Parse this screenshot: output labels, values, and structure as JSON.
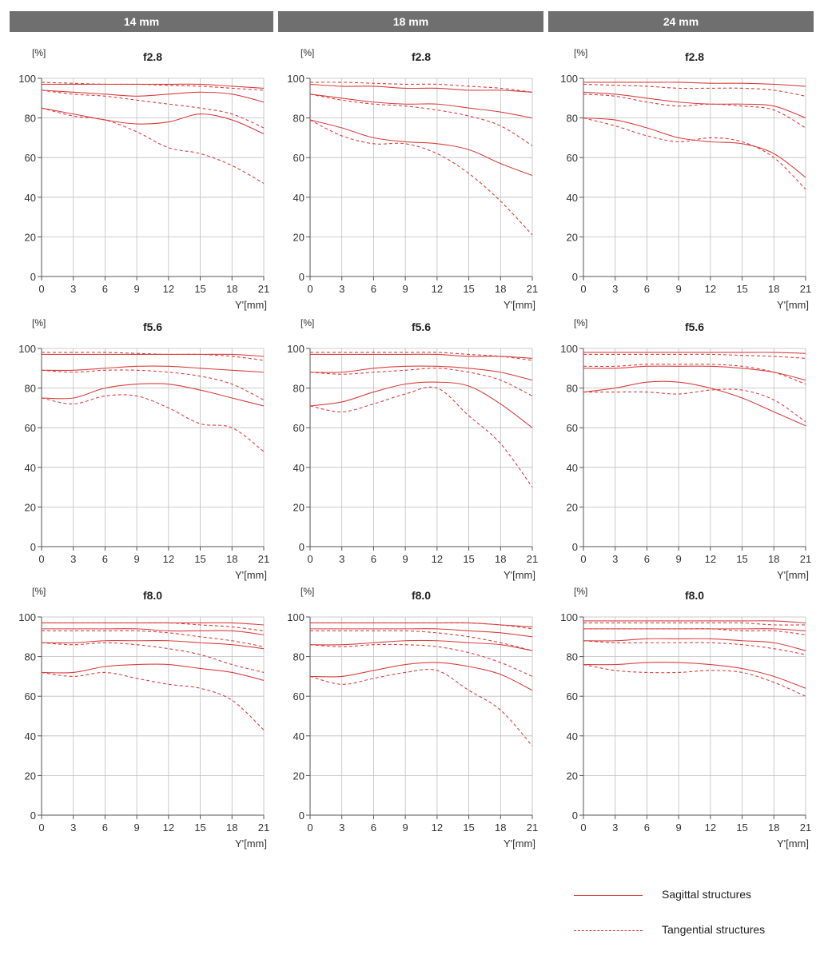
{
  "colors": {
    "curve": "#d94040",
    "grid": "#bdbdbd",
    "axis": "#555555",
    "header_bg": "#6f6f6f"
  },
  "chart_data": {
    "type": "line",
    "columns": [
      "14 mm",
      "18 mm",
      "24 mm"
    ],
    "y_unit_label": "[%]",
    "x_axis_label": "Y'[mm]",
    "x_ticks": [
      0,
      3,
      6,
      9,
      12,
      15,
      18,
      21
    ],
    "y_ticks": [
      0,
      20,
      40,
      60,
      80,
      100
    ],
    "xlim": [
      0,
      21
    ],
    "ylim": [
      0,
      100
    ],
    "grid": true,
    "legend": {
      "placement": "bottom-right",
      "entries": [
        {
          "name": "Sagittal structures",
          "style": "solid"
        },
        {
          "name": "Tangential structures",
          "style": "dashed"
        }
      ]
    },
    "x": [
      0,
      3,
      6,
      9,
      12,
      15,
      18,
      21
    ],
    "panels": [
      {
        "column": "14 mm",
        "aperture": "f2.8",
        "series": [
          {
            "style": "solid",
            "values": [
              97,
              97,
              97,
              97,
              97,
              97,
              96,
              95
            ]
          },
          {
            "style": "dashed",
            "values": [
              98,
              97.5,
              97,
              97,
              96.5,
              96,
              95,
              94
            ]
          },
          {
            "style": "solid",
            "values": [
              94,
              93,
              92,
              91,
              92,
              93,
              92,
              88
            ]
          },
          {
            "style": "dashed",
            "values": [
              94,
              92,
              91,
              89,
              87,
              85,
              82,
              75
            ]
          },
          {
            "style": "solid",
            "values": [
              85,
              82,
              79,
              77,
              78,
              82,
              79,
              72
            ]
          },
          {
            "style": "dashed",
            "values": [
              85,
              81,
              79,
              73,
              65,
              62,
              56,
              47
            ]
          }
        ]
      },
      {
        "column": "18 mm",
        "aperture": "f2.8",
        "series": [
          {
            "style": "solid",
            "values": [
              97,
              96,
              96,
              95,
              95,
              94,
              94,
              93
            ]
          },
          {
            "style": "dashed",
            "values": [
              98,
              98,
              97.5,
              97,
              97,
              96,
              95,
              93
            ]
          },
          {
            "style": "solid",
            "values": [
              92,
              90,
              88,
              87,
              87,
              85,
              83,
              80
            ]
          },
          {
            "style": "dashed",
            "values": [
              92,
              89,
              87,
              86,
              84,
              81,
              76,
              66
            ]
          },
          {
            "style": "solid",
            "values": [
              79,
              75,
              70,
              68,
              67,
              64,
              57,
              51
            ]
          },
          {
            "style": "dashed",
            "values": [
              79,
              71,
              67,
              67,
              62,
              52,
              38,
              21
            ]
          }
        ]
      },
      {
        "column": "24 mm",
        "aperture": "f2.8",
        "series": [
          {
            "style": "solid",
            "values": [
              98,
              98,
              98,
              98,
              97.5,
              97.5,
              97,
              96
            ]
          },
          {
            "style": "dashed",
            "values": [
              97,
              96.5,
              96,
              95,
              95,
              95,
              94,
              91
            ]
          },
          {
            "style": "solid",
            "values": [
              93,
              92,
              90,
              88,
              87,
              87,
              86,
              80
            ]
          },
          {
            "style": "dashed",
            "values": [
              92,
              91,
              88,
              86,
              87,
              86,
              84,
              75
            ]
          },
          {
            "style": "solid",
            "values": [
              80,
              79,
              75,
              70,
              68,
              67,
              62,
              50
            ]
          },
          {
            "style": "dashed",
            "values": [
              80,
              76,
              71,
              68,
              70,
              68,
              60,
              44
            ]
          }
        ]
      },
      {
        "column": "14 mm",
        "aperture": "f5.6",
        "series": [
          {
            "style": "solid",
            "values": [
              97,
              97,
              97,
              97,
              97,
              97,
              97,
              96
            ]
          },
          {
            "style": "dashed",
            "values": [
              98,
              98,
              98,
              97.5,
              97,
              97,
              96,
              94
            ]
          },
          {
            "style": "solid",
            "values": [
              89,
              89,
              90,
              91,
              91,
              90,
              89,
              88
            ]
          },
          {
            "style": "dashed",
            "values": [
              89,
              88,
              89,
              89,
              88,
              86,
              82,
              74
            ]
          },
          {
            "style": "solid",
            "values": [
              75,
              75,
              80,
              82,
              82,
              79,
              75,
              71
            ]
          },
          {
            "style": "dashed",
            "values": [
              75,
              72,
              76,
              76,
              70,
              62,
              60,
              48
            ]
          }
        ]
      },
      {
        "column": "18 mm",
        "aperture": "f5.6",
        "series": [
          {
            "style": "solid",
            "values": [
              97,
              97,
              97,
              97,
              97,
              96,
              96,
              95
            ]
          },
          {
            "style": "dashed",
            "values": [
              98,
              98,
              98,
              98,
              98,
              97,
              96,
              94
            ]
          },
          {
            "style": "solid",
            "values": [
              88,
              88,
              90,
              91,
              91,
              90,
              88,
              84
            ]
          },
          {
            "style": "dashed",
            "values": [
              88,
              87,
              88,
              89,
              90,
              88,
              84,
              76
            ]
          },
          {
            "style": "solid",
            "values": [
              71,
              73,
              78,
              82,
              83,
              81,
              72,
              60
            ]
          },
          {
            "style": "dashed",
            "values": [
              71,
              68,
              72,
              77,
              80,
              66,
              52,
              30
            ]
          }
        ]
      },
      {
        "column": "24 mm",
        "aperture": "f5.6",
        "series": [
          {
            "style": "solid",
            "values": [
              98,
              98,
              98,
              98,
              98,
              98,
              98,
              97.5
            ]
          },
          {
            "style": "dashed",
            "values": [
              97,
              97,
              97,
              97,
              97,
              96.5,
              96,
              95
            ]
          },
          {
            "style": "solid",
            "values": [
              90,
              90,
              91,
              91,
              91,
              90,
              88,
              84
            ]
          },
          {
            "style": "dashed",
            "values": [
              91,
              91,
              92,
              92,
              92,
              91,
              88,
              82
            ]
          },
          {
            "style": "solid",
            "values": [
              78,
              80,
              83,
              83,
              80,
              75,
              68,
              61
            ]
          },
          {
            "style": "dashed",
            "values": [
              78,
              78,
              78,
              77,
              79,
              79,
              74,
              63
            ]
          }
        ]
      },
      {
        "column": "14 mm",
        "aperture": "f8.0",
        "series": [
          {
            "style": "solid",
            "values": [
              97,
              97,
              97,
              97,
              97,
              97,
              97,
              96
            ]
          },
          {
            "style": "dashed",
            "values": [
              97,
              97,
              97,
              97,
              97,
              96,
              95,
              93
            ]
          },
          {
            "style": "solid",
            "values": [
              94,
              94,
              94,
              94,
              93,
              93,
              93,
              91
            ]
          },
          {
            "style": "dashed",
            "values": [
              93,
              93,
              93,
              93,
              92,
              90,
              88,
              85
            ]
          },
          {
            "style": "solid",
            "values": [
              87,
              87,
              88,
              88,
              88,
              87,
              86,
              84
            ]
          },
          {
            "style": "dashed",
            "values": [
              87,
              86,
              87,
              86,
              84,
              81,
              76,
              72
            ]
          },
          {
            "style": "solid",
            "values": [
              72,
              72,
              75,
              76,
              76,
              74,
              72,
              68
            ]
          },
          {
            "style": "dashed",
            "values": [
              72,
              70,
              72,
              69,
              66,
              64,
              58,
              43
            ]
          }
        ]
      },
      {
        "column": "18 mm",
        "aperture": "f8.0",
        "series": [
          {
            "style": "solid",
            "values": [
              97,
              97,
              97,
              97,
              97,
              97,
              96,
              95
            ]
          },
          {
            "style": "dashed",
            "values": [
              97,
              97,
              97,
              97,
              97,
              97,
              96,
              94
            ]
          },
          {
            "style": "solid",
            "values": [
              94,
              94,
              94,
              94,
              94,
              93,
              92,
              90
            ]
          },
          {
            "style": "dashed",
            "values": [
              93,
              93,
              93,
              93,
              92,
              90,
              87,
              83
            ]
          },
          {
            "style": "solid",
            "values": [
              86,
              86,
              87,
              88,
              88,
              87,
              86,
              83
            ]
          },
          {
            "style": "dashed",
            "values": [
              86,
              85,
              86,
              86,
              85,
              82,
              77,
              70
            ]
          },
          {
            "style": "solid",
            "values": [
              70,
              70,
              73,
              76,
              77,
              75,
              71,
              63
            ]
          },
          {
            "style": "dashed",
            "values": [
              70,
              66,
              69,
              72,
              73,
              63,
              53,
              35
            ]
          }
        ]
      },
      {
        "column": "24 mm",
        "aperture": "f8.0",
        "series": [
          {
            "style": "solid",
            "values": [
              98,
              98,
              98,
              98,
              98,
              98,
              98,
              97
            ]
          },
          {
            "style": "dashed",
            "values": [
              97,
              97,
              97,
              97,
              97,
              97,
              96,
              96
            ]
          },
          {
            "style": "solid",
            "values": [
              94,
              94,
              94,
              94,
              94,
              94,
              94,
              93
            ]
          },
          {
            "style": "dashed",
            "values": [
              94,
              94,
              94,
              94,
              94,
              93,
              93,
              91
            ]
          },
          {
            "style": "solid",
            "values": [
              88,
              88,
              89,
              89,
              89,
              88,
              87,
              83
            ]
          },
          {
            "style": "dashed",
            "values": [
              88,
              87,
              87,
              87,
              87,
              86,
              84,
              81
            ]
          },
          {
            "style": "solid",
            "values": [
              76,
              76,
              77,
              77,
              76,
              74,
              70,
              64
            ]
          },
          {
            "style": "dashed",
            "values": [
              76,
              73,
              72,
              72,
              73,
              72,
              67,
              60
            ]
          }
        ]
      }
    ]
  }
}
